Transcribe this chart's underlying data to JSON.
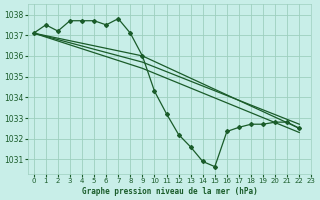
{
  "title": "Graphe pression niveau de la mer (hPa)",
  "background_color": "#c8eee8",
  "grid_color": "#9ecfbf",
  "line_color": "#1a5c2a",
  "xlim": [
    -0.5,
    23
  ],
  "ylim": [
    1030.3,
    1038.5
  ],
  "yticks": [
    1031,
    1032,
    1033,
    1034,
    1035,
    1036,
    1037,
    1038
  ],
  "xticks": [
    0,
    1,
    2,
    3,
    4,
    5,
    6,
    7,
    8,
    9,
    10,
    11,
    12,
    13,
    14,
    15,
    16,
    17,
    18,
    19,
    20,
    21,
    22,
    23
  ],
  "series": [
    {
      "x": [
        0,
        1,
        2,
        3,
        4,
        5,
        6,
        7,
        8,
        9,
        10,
        11,
        12,
        13,
        14,
        15,
        16,
        17,
        18,
        19,
        20,
        21,
        22
      ],
      "y": [
        1037.1,
        1037.5,
        1037.2,
        1037.7,
        1037.7,
        1037.7,
        1037.5,
        1037.8,
        1037.1,
        1036.0,
        1034.3,
        1033.2,
        1032.2,
        1031.6,
        1030.9,
        1030.65,
        1032.35,
        1032.55,
        1032.7,
        1032.7,
        1032.8,
        1032.8,
        1032.5
      ],
      "markers": true
    },
    {
      "x": [
        0,
        9,
        22
      ],
      "y": [
        1037.1,
        1036.0,
        1032.5
      ],
      "markers": false
    },
    {
      "x": [
        0,
        9,
        22
      ],
      "y": [
        1037.1,
        1035.7,
        1032.7
      ],
      "markers": false
    },
    {
      "x": [
        0,
        9,
        22
      ],
      "y": [
        1037.1,
        1035.4,
        1032.3
      ],
      "markers": false
    }
  ]
}
